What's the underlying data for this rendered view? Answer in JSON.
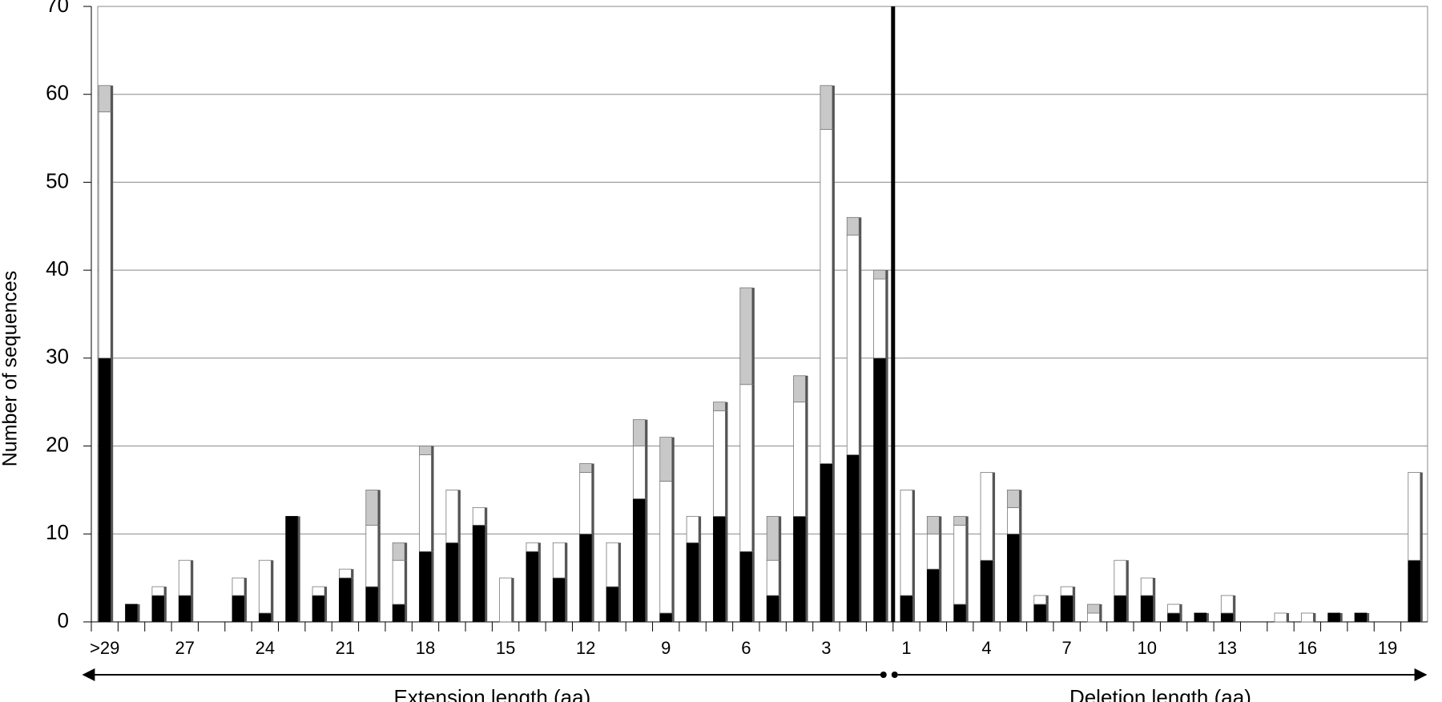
{
  "chart_data": {
    "type": "stacked_bar",
    "ylabel": "Number of sequences",
    "x_group_labels": [
      "Extension length (aa)",
      "Deletion length (aa)"
    ],
    "categories": [
      ">29",
      null,
      null,
      "27",
      null,
      null,
      "24",
      null,
      null,
      "21",
      null,
      null,
      "18",
      null,
      null,
      "15",
      null,
      null,
      "12",
      null,
      null,
      "9",
      null,
      null,
      "6",
      null,
      null,
      "3",
      null,
      null,
      "1",
      null,
      null,
      "4",
      null,
      null,
      "7",
      null,
      null,
      "10",
      null,
      null,
      "13",
      null,
      null,
      "16",
      null,
      null,
      "19",
      null
    ],
    "series": [
      {
        "color": "#000000",
        "values": [
          30,
          2,
          3,
          3,
          0,
          3,
          1,
          12,
          3,
          5,
          4,
          2,
          8,
          9,
          11,
          0,
          8,
          5,
          10,
          4,
          14,
          1,
          9,
          12,
          8,
          3,
          12,
          18,
          19,
          30,
          3,
          6,
          2,
          7,
          10,
          2,
          3,
          0,
          3,
          3,
          1,
          1,
          1,
          0,
          0,
          0,
          1,
          1,
          0,
          7
        ]
      },
      {
        "color": "#ffffff",
        "values": [
          28,
          0,
          1,
          4,
          0,
          2,
          6,
          0,
          1,
          1,
          7,
          5,
          11,
          6,
          2,
          5,
          1,
          4,
          7,
          5,
          6,
          15,
          3,
          12,
          19,
          4,
          13,
          38,
          25,
          9,
          12,
          4,
          9,
          10,
          3,
          1,
          1,
          1,
          4,
          2,
          1,
          0,
          2,
          0,
          1,
          1,
          0,
          0,
          0,
          10
        ]
      },
      {
        "color": "#c8c8c8",
        "values": [
          3,
          0,
          0,
          0,
          0,
          0,
          0,
          0,
          0,
          0,
          4,
          2,
          1,
          0,
          0,
          0,
          0,
          0,
          1,
          0,
          3,
          5,
          0,
          1,
          11,
          5,
          3,
          5,
          2,
          1,
          0,
          2,
          1,
          0,
          2,
          0,
          0,
          1,
          0,
          0,
          0,
          0,
          0,
          0,
          0,
          0,
          0,
          0,
          0,
          0
        ]
      }
    ],
    "ylim": [
      0,
      70
    ],
    "yticks": [
      0,
      10,
      20,
      30,
      40,
      50,
      60,
      70
    ],
    "grid": true
  }
}
